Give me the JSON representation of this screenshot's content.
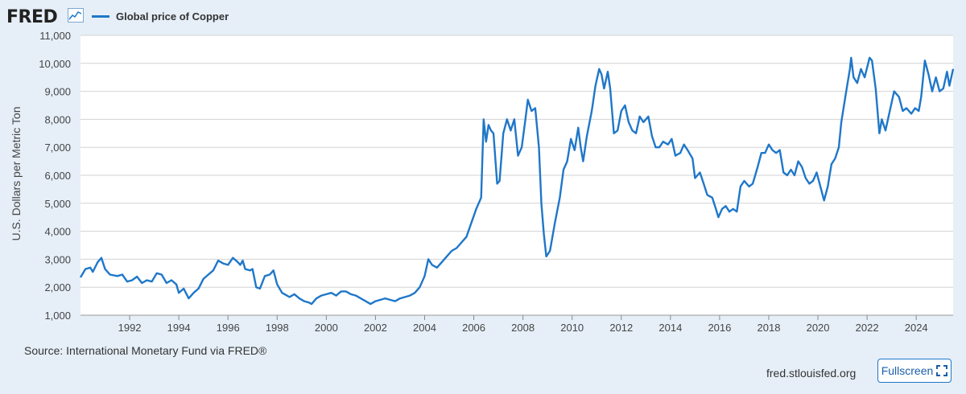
{
  "header": {
    "logo_text": "FRED",
    "logo_icon": "trend-graph-icon"
  },
  "footer": {
    "source": "Source: International Monetary Fund via FRED®",
    "site": "fred.stlouisfed.org",
    "fullscreen_label": "Fullscreen",
    "fullscreen_icon": "expand-icon"
  },
  "colors": {
    "series": "#1f77c9",
    "background": "#e6eff8",
    "plot_background": "#ffffff",
    "grid": "#d3d3d3"
  },
  "chart_data": {
    "type": "line",
    "title": "",
    "xlabel": "",
    "ylabel": "U.S. Dollars per Metric Ton",
    "xlim": [
      1990.0,
      2025.5
    ],
    "ylim": [
      1000,
      11000
    ],
    "yticks": [
      1000,
      2000,
      3000,
      4000,
      5000,
      6000,
      7000,
      8000,
      9000,
      10000,
      11000
    ],
    "ytick_labels": [
      "1,000",
      "2,000",
      "3,000",
      "4,000",
      "5,000",
      "6,000",
      "7,000",
      "8,000",
      "9,000",
      "10,000",
      "11,000"
    ],
    "xticks": [
      1992,
      1994,
      1996,
      1998,
      2000,
      2002,
      2004,
      2006,
      2008,
      2010,
      2012,
      2014,
      2016,
      2018,
      2020,
      2022,
      2024
    ],
    "xtick_labels": [
      "1992",
      "1994",
      "1996",
      "1998",
      "2000",
      "2002",
      "2004",
      "2006",
      "2008",
      "2010",
      "2012",
      "2014",
      "2016",
      "2018",
      "2020",
      "2022",
      "2024"
    ],
    "grid": true,
    "legend": "top-left",
    "series": [
      {
        "name": "Global price of Copper",
        "color": "#1f77c9",
        "points": [
          [
            1990.0,
            2350
          ],
          [
            1990.2,
            2650
          ],
          [
            1990.4,
            2700
          ],
          [
            1990.5,
            2550
          ],
          [
            1990.7,
            2900
          ],
          [
            1990.85,
            3050
          ],
          [
            1991.0,
            2650
          ],
          [
            1991.2,
            2450
          ],
          [
            1991.5,
            2400
          ],
          [
            1991.7,
            2450
          ],
          [
            1991.9,
            2200
          ],
          [
            1992.1,
            2250
          ],
          [
            1992.3,
            2380
          ],
          [
            1992.5,
            2150
          ],
          [
            1992.7,
            2250
          ],
          [
            1992.9,
            2200
          ],
          [
            1993.1,
            2500
          ],
          [
            1993.3,
            2450
          ],
          [
            1993.5,
            2150
          ],
          [
            1993.7,
            2250
          ],
          [
            1993.9,
            2100
          ],
          [
            1994.0,
            1800
          ],
          [
            1994.2,
            1950
          ],
          [
            1994.4,
            1600
          ],
          [
            1994.6,
            1800
          ],
          [
            1994.8,
            1950
          ],
          [
            1995.0,
            2300
          ],
          [
            1995.2,
            2450
          ],
          [
            1995.4,
            2600
          ],
          [
            1995.6,
            2950
          ],
          [
            1995.8,
            2850
          ],
          [
            1996.0,
            2800
          ],
          [
            1996.2,
            3050
          ],
          [
            1996.4,
            2900
          ],
          [
            1996.5,
            2800
          ],
          [
            1996.6,
            2950
          ],
          [
            1996.7,
            2650
          ],
          [
            1996.9,
            2600
          ],
          [
            1997.0,
            2650
          ],
          [
            1997.15,
            2000
          ],
          [
            1997.3,
            1950
          ],
          [
            1997.5,
            2400
          ],
          [
            1997.7,
            2450
          ],
          [
            1997.85,
            2600
          ],
          [
            1998.0,
            2100
          ],
          [
            1998.2,
            1800
          ],
          [
            1998.4,
            1700
          ],
          [
            1998.5,
            1650
          ],
          [
            1998.7,
            1750
          ],
          [
            1998.9,
            1600
          ],
          [
            1999.1,
            1500
          ],
          [
            1999.3,
            1450
          ],
          [
            1999.4,
            1400
          ],
          [
            1999.6,
            1600
          ],
          [
            1999.8,
            1700
          ],
          [
            2000.0,
            1750
          ],
          [
            2000.2,
            1800
          ],
          [
            2000.4,
            1700
          ],
          [
            2000.6,
            1850
          ],
          [
            2000.8,
            1850
          ],
          [
            2001.0,
            1750
          ],
          [
            2001.2,
            1700
          ],
          [
            2001.4,
            1600
          ],
          [
            2001.6,
            1500
          ],
          [
            2001.8,
            1400
          ],
          [
            2002.0,
            1500
          ],
          [
            2002.2,
            1550
          ],
          [
            2002.4,
            1600
          ],
          [
            2002.6,
            1550
          ],
          [
            2002.8,
            1500
          ],
          [
            2003.0,
            1600
          ],
          [
            2003.2,
            1650
          ],
          [
            2003.4,
            1700
          ],
          [
            2003.6,
            1800
          ],
          [
            2003.8,
            2000
          ],
          [
            2004.0,
            2400
          ],
          [
            2004.15,
            3000
          ],
          [
            2004.3,
            2800
          ],
          [
            2004.5,
            2700
          ],
          [
            2004.7,
            2900
          ],
          [
            2004.9,
            3100
          ],
          [
            2005.1,
            3300
          ],
          [
            2005.3,
            3400
          ],
          [
            2005.5,
            3600
          ],
          [
            2005.7,
            3800
          ],
          [
            2005.9,
            4300
          ],
          [
            2006.1,
            4800
          ],
          [
            2006.3,
            5200
          ],
          [
            2006.4,
            8000
          ],
          [
            2006.5,
            7200
          ],
          [
            2006.6,
            7800
          ],
          [
            2006.7,
            7600
          ],
          [
            2006.8,
            7500
          ],
          [
            2006.95,
            5700
          ],
          [
            2007.05,
            5800
          ],
          [
            2007.2,
            7500
          ],
          [
            2007.35,
            8000
          ],
          [
            2007.5,
            7600
          ],
          [
            2007.65,
            8000
          ],
          [
            2007.8,
            6700
          ],
          [
            2007.95,
            7000
          ],
          [
            2008.1,
            8000
          ],
          [
            2008.2,
            8700
          ],
          [
            2008.35,
            8300
          ],
          [
            2008.5,
            8400
          ],
          [
            2008.65,
            7000
          ],
          [
            2008.75,
            5000
          ],
          [
            2008.85,
            3900
          ],
          [
            2008.95,
            3100
          ],
          [
            2009.1,
            3300
          ],
          [
            2009.3,
            4300
          ],
          [
            2009.5,
            5200
          ],
          [
            2009.65,
            6200
          ],
          [
            2009.8,
            6500
          ],
          [
            2009.95,
            7300
          ],
          [
            2010.1,
            6900
          ],
          [
            2010.25,
            7700
          ],
          [
            2010.35,
            7000
          ],
          [
            2010.45,
            6500
          ],
          [
            2010.6,
            7400
          ],
          [
            2010.8,
            8300
          ],
          [
            2010.95,
            9200
          ],
          [
            2011.1,
            9800
          ],
          [
            2011.2,
            9600
          ],
          [
            2011.3,
            9100
          ],
          [
            2011.45,
            9700
          ],
          [
            2011.55,
            9100
          ],
          [
            2011.7,
            7500
          ],
          [
            2011.85,
            7600
          ],
          [
            2012.0,
            8300
          ],
          [
            2012.15,
            8500
          ],
          [
            2012.3,
            7900
          ],
          [
            2012.45,
            7600
          ],
          [
            2012.6,
            7500
          ],
          [
            2012.75,
            8100
          ],
          [
            2012.9,
            7900
          ],
          [
            2013.1,
            8100
          ],
          [
            2013.25,
            7400
          ],
          [
            2013.4,
            7000
          ],
          [
            2013.55,
            7000
          ],
          [
            2013.7,
            7200
          ],
          [
            2013.9,
            7100
          ],
          [
            2014.05,
            7300
          ],
          [
            2014.2,
            6700
          ],
          [
            2014.4,
            6800
          ],
          [
            2014.55,
            7100
          ],
          [
            2014.7,
            6900
          ],
          [
            2014.9,
            6600
          ],
          [
            2015.0,
            5900
          ],
          [
            2015.2,
            6100
          ],
          [
            2015.35,
            5700
          ],
          [
            2015.5,
            5300
          ],
          [
            2015.7,
            5200
          ],
          [
            2015.85,
            4800
          ],
          [
            2015.95,
            4500
          ],
          [
            2016.1,
            4800
          ],
          [
            2016.25,
            4900
          ],
          [
            2016.4,
            4700
          ],
          [
            2016.55,
            4800
          ],
          [
            2016.7,
            4700
          ],
          [
            2016.85,
            5600
          ],
          [
            2017.0,
            5800
          ],
          [
            2017.2,
            5600
          ],
          [
            2017.35,
            5700
          ],
          [
            2017.55,
            6300
          ],
          [
            2017.7,
            6800
          ],
          [
            2017.85,
            6800
          ],
          [
            2018.0,
            7100
          ],
          [
            2018.15,
            6900
          ],
          [
            2018.3,
            6800
          ],
          [
            2018.45,
            6900
          ],
          [
            2018.6,
            6100
          ],
          [
            2018.75,
            6000
          ],
          [
            2018.9,
            6200
          ],
          [
            2019.05,
            6000
          ],
          [
            2019.2,
            6500
          ],
          [
            2019.35,
            6300
          ],
          [
            2019.5,
            5900
          ],
          [
            2019.65,
            5700
          ],
          [
            2019.8,
            5800
          ],
          [
            2019.95,
            6100
          ],
          [
            2020.1,
            5600
          ],
          [
            2020.25,
            5100
          ],
          [
            2020.4,
            5600
          ],
          [
            2020.55,
            6400
          ],
          [
            2020.7,
            6600
          ],
          [
            2020.85,
            7000
          ],
          [
            2020.95,
            7900
          ],
          [
            2021.15,
            9000
          ],
          [
            2021.3,
            9800
          ],
          [
            2021.35,
            10200
          ],
          [
            2021.45,
            9500
          ],
          [
            2021.6,
            9300
          ],
          [
            2021.75,
            9800
          ],
          [
            2021.9,
            9500
          ],
          [
            2022.1,
            10200
          ],
          [
            2022.2,
            10100
          ],
          [
            2022.35,
            9100
          ],
          [
            2022.5,
            7500
          ],
          [
            2022.6,
            8000
          ],
          [
            2022.75,
            7600
          ],
          [
            2022.95,
            8400
          ],
          [
            2023.1,
            9000
          ],
          [
            2023.3,
            8800
          ],
          [
            2023.45,
            8300
          ],
          [
            2023.6,
            8400
          ],
          [
            2023.8,
            8200
          ],
          [
            2023.95,
            8400
          ],
          [
            2024.1,
            8300
          ],
          [
            2024.2,
            8800
          ],
          [
            2024.35,
            10100
          ],
          [
            2024.5,
            9600
          ],
          [
            2024.65,
            9000
          ],
          [
            2024.8,
            9500
          ],
          [
            2024.95,
            9000
          ],
          [
            2025.1,
            9100
          ],
          [
            2025.25,
            9700
          ],
          [
            2025.35,
            9200
          ],
          [
            2025.5,
            9800
          ]
        ]
      }
    ]
  }
}
